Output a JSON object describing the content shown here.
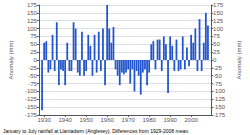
{
  "chart_data": {
    "type": "bar",
    "x": [
      1929,
      1930,
      1931,
      1932,
      1933,
      1934,
      1935,
      1936,
      1937,
      1938,
      1939,
      1940,
      1941,
      1942,
      1943,
      1944,
      1945,
      1946,
      1947,
      1948,
      1949,
      1950,
      1951,
      1952,
      1953,
      1954,
      1955,
      1956,
      1957,
      1958,
      1959,
      1960,
      1961,
      1962,
      1963,
      1964,
      1965,
      1966,
      1967,
      1968,
      1969,
      1970,
      1971,
      1972,
      1973,
      1974,
      1975,
      1976,
      1977,
      1978,
      1979,
      1980,
      1981,
      1982,
      1983,
      1984,
      1985,
      1986,
      1987,
      1988,
      1989,
      1990,
      1991,
      1992,
      1993,
      1994,
      1995,
      1996,
      1997,
      1998,
      1999,
      2000,
      2001,
      2002,
      2003,
      2004,
      2005,
      2006,
      2007,
      2008
    ],
    "values": [
      -160,
      55,
      60,
      -40,
      -30,
      80,
      -35,
      120,
      -80,
      -30,
      -35,
      -80,
      55,
      -35,
      -35,
      120,
      100,
      -40,
      -50,
      90,
      -50,
      -35,
      80,
      45,
      -50,
      80,
      -40,
      90,
      -35,
      100,
      -80,
      175,
      100,
      55,
      105,
      -30,
      -50,
      -80,
      -40,
      -45,
      -40,
      -30,
      -75,
      -30,
      -100,
      -35,
      -50,
      -110,
      -40,
      -30,
      -80,
      -40,
      50,
      60,
      -30,
      65,
      65,
      -35,
      75,
      50,
      -105,
      75,
      45,
      -35,
      65,
      -35,
      -30,
      75,
      -30,
      40,
      -20,
      80,
      55,
      100,
      -35,
      130,
      -35,
      55,
      150,
      110
    ],
    "color": "#2255cc",
    "xlim": [
      1927.5,
      2009.5
    ],
    "xticks": [
      1930,
      1940,
      1950,
      1960,
      1970,
      1980,
      1990,
      2000
    ],
    "ylim": [
      -175,
      175
    ],
    "yticks": [
      -175,
      -150,
      -125,
      -100,
      -75,
      -50,
      -25,
      0,
      25,
      50,
      75,
      100,
      125,
      150,
      175
    ],
    "y2lim": [
      -175,
      175
    ],
    "y2ticks": [
      -175,
      -150,
      -125,
      -100,
      -75,
      -50,
      -25,
      0,
      25,
      50,
      75,
      100,
      125,
      150,
      175
    ],
    "ylabel": "Anomaly (mm)",
    "y2label": "Anomaly (mm)",
    "caption": "January to July rainfall at Llantadwrn (Anglesey). Differences from 1929-2008 mean.",
    "grid": true
  }
}
